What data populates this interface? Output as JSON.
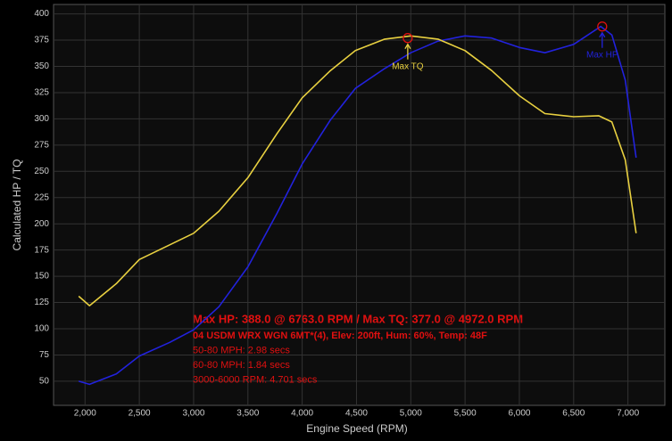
{
  "chart_data": {
    "type": "line",
    "x_label": "Engine Speed (RPM)",
    "y_label": "Calculated HP / TQ",
    "xlim": [
      1710,
      7340
    ],
    "ylim": [
      27,
      409
    ],
    "xticks": [
      {
        "value": 2000,
        "label": "2,000"
      },
      {
        "value": 2500,
        "label": "2,500"
      },
      {
        "value": 3000,
        "label": "3,000"
      },
      {
        "value": 3500,
        "label": "3,500"
      },
      {
        "value": 4000,
        "label": "4,000"
      },
      {
        "value": 4500,
        "label": "4,500"
      },
      {
        "value": 5000,
        "label": "5,000"
      },
      {
        "value": 5500,
        "label": "5,500"
      },
      {
        "value": 6000,
        "label": "6,000"
      },
      {
        "value": 6500,
        "label": "6,500"
      },
      {
        "value": 7000,
        "label": "7,000"
      }
    ],
    "yticks": [
      50,
      75,
      100,
      125,
      150,
      175,
      200,
      225,
      250,
      275,
      300,
      325,
      350,
      375,
      400
    ],
    "grid": true,
    "series": [
      {
        "color": "#2222dd",
        "x": [
          1942,
          2041,
          2288,
          2500,
          2780,
          3000,
          3233,
          3500,
          3768,
          4000,
          4260,
          4490,
          4760,
          5000,
          5250,
          5500,
          5745,
          6000,
          6235,
          6500,
          6750,
          6852,
          6975,
          7075
        ],
        "values": [
          50,
          47,
          57,
          74,
          87,
          99,
          121,
          159,
          210,
          257,
          299,
          329,
          348,
          363,
          374,
          379,
          377,
          368,
          363,
          371,
          388,
          380,
          337,
          263
        ]
      },
      {
        "color": "#e8d040",
        "x": [
          1942,
          2041,
          2288,
          2500,
          2780,
          3000,
          3233,
          3500,
          3768,
          4000,
          4260,
          4490,
          4760,
          5000,
          5250,
          5500,
          5745,
          6000,
          6235,
          6500,
          6730,
          6852,
          6975,
          7075
        ],
        "values": [
          131,
          122,
          143,
          166,
          180,
          191,
          212,
          244,
          286,
          320,
          346,
          365,
          376,
          379,
          376,
          365,
          346,
          322,
          305,
          302,
          303,
          297,
          261,
          191
        ]
      }
    ],
    "peaks": [
      {
        "label": "Max TQ",
        "x": 4972,
        "y": 377,
        "color": "#e8d040"
      },
      {
        "label": "Max HP",
        "x": 6763,
        "y": 388,
        "color": "#2222dd"
      }
    ],
    "info_title": "Max HP: 388.0 @ 6763.0 RPM / Max TQ: 377.0 @ 4972.0 RPM",
    "info_lines": [
      "04 USDM WRX WGN 6MT*(4), Elev: 200ft, Hum: 60%, Temp: 48F",
      "50-80 MPH: 2.98 secs",
      "60-80 MPH: 1.84 secs",
      "3000-6000 RPM: 4.701 secs"
    ]
  }
}
